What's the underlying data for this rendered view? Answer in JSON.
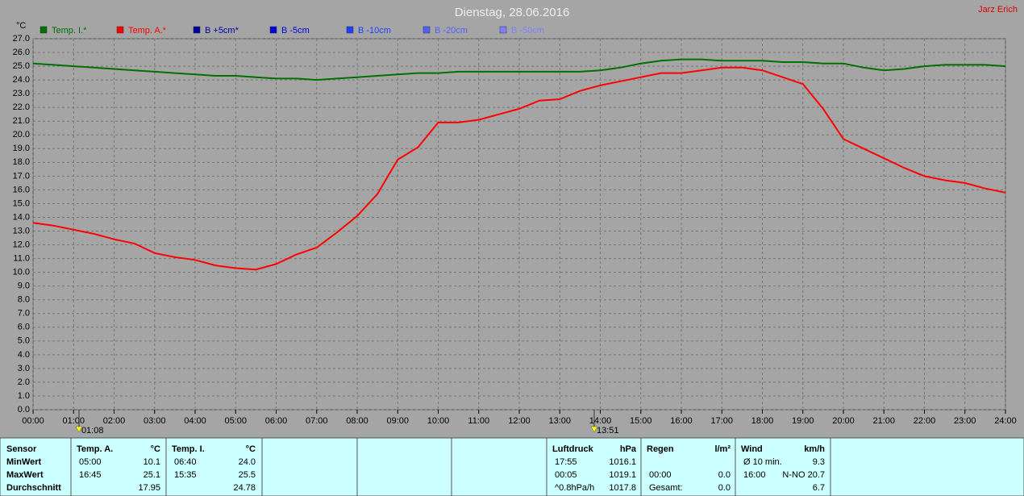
{
  "chart_data": {
    "type": "line",
    "title": "Dienstag, 28.06.2016",
    "author": "Jarz Erich",
    "y_label": "°C",
    "x": [
      0,
      0.5,
      1,
      1.5,
      2,
      2.5,
      3,
      3.5,
      4,
      4.5,
      5,
      5.5,
      6,
      6.5,
      7,
      7.5,
      8,
      8.5,
      9,
      9.5,
      10,
      10.5,
      11,
      11.5,
      12,
      12.5,
      13,
      13.5,
      14,
      14.5,
      15,
      15.5,
      16,
      16.5,
      17,
      17.5,
      18,
      18.5,
      19,
      19.5,
      20,
      20.5,
      21,
      21.5,
      22,
      22.5,
      23,
      23.5,
      24
    ],
    "series": [
      {
        "name": "Temp. I.*",
        "color": "#007000",
        "values": [
          25.2,
          25.1,
          25.0,
          24.9,
          24.8,
          24.7,
          24.6,
          24.5,
          24.4,
          24.3,
          24.3,
          24.2,
          24.1,
          24.1,
          24.0,
          24.1,
          24.2,
          24.3,
          24.4,
          24.5,
          24.5,
          24.6,
          24.6,
          24.6,
          24.6,
          24.6,
          24.6,
          24.6,
          24.7,
          24.9,
          25.2,
          25.4,
          25.5,
          25.5,
          25.4,
          25.4,
          25.4,
          25.3,
          25.3,
          25.2,
          25.2,
          24.9,
          24.7,
          24.8,
          25.0,
          25.1,
          25.1,
          25.1,
          25.0
        ]
      },
      {
        "name": "Temp. A.*",
        "color": "#ff0000",
        "values": [
          13.6,
          13.4,
          13.1,
          12.8,
          12.4,
          12.1,
          11.4,
          11.1,
          10.9,
          10.5,
          10.3,
          10.2,
          10.6,
          11.3,
          11.8,
          12.9,
          14.1,
          15.7,
          18.2,
          19.1,
          20.9,
          20.9,
          21.1,
          21.5,
          21.9,
          22.5,
          22.6,
          23.2,
          23.6,
          23.9,
          24.2,
          24.5,
          24.5,
          24.7,
          24.9,
          24.9,
          24.7,
          24.2,
          23.7,
          21.9,
          19.7,
          19.0,
          18.3,
          17.6,
          17.0,
          16.7,
          16.5,
          16.1,
          15.8
        ]
      }
    ],
    "legend_only": [
      {
        "name": "B +5cm*",
        "color": "#0000a0"
      },
      {
        "name": "B -5cm",
        "color": "#0000e0"
      },
      {
        "name": "B -10cm",
        "color": "#2040ff"
      },
      {
        "name": "B -20cm",
        "color": "#5060ff"
      },
      {
        "name": "B -50cm",
        "color": "#8080ff"
      }
    ],
    "markers": [
      {
        "x": 1.1333,
        "label": "01:08"
      },
      {
        "x": 13.85,
        "label": "13:51"
      }
    ],
    "xlim": [
      0,
      24
    ],
    "xticks": [
      {
        "value": 0,
        "label": "00:00"
      },
      {
        "value": 1,
        "label": "01:00"
      },
      {
        "value": 2,
        "label": "02:00"
      },
      {
        "value": 3,
        "label": "03:00"
      },
      {
        "value": 4,
        "label": "04:00"
      },
      {
        "value": 5,
        "label": "05:00"
      },
      {
        "value": 6,
        "label": "06:00"
      },
      {
        "value": 7,
        "label": "07:00"
      },
      {
        "value": 8,
        "label": "08:00"
      },
      {
        "value": 9,
        "label": "09:00"
      },
      {
        "value": 10,
        "label": "10:00"
      },
      {
        "value": 11,
        "label": "11:00"
      },
      {
        "value": 12,
        "label": "12:00"
      },
      {
        "value": 13,
        "label": "13:00"
      },
      {
        "value": 14,
        "label": "14:00"
      },
      {
        "value": 15,
        "label": "15:00"
      },
      {
        "value": 16,
        "label": "16:00"
      },
      {
        "value": 17,
        "label": "17:00"
      },
      {
        "value": 18,
        "label": "18:00"
      },
      {
        "value": 19,
        "label": "19:00"
      },
      {
        "value": 20,
        "label": "20:00"
      },
      {
        "value": 21,
        "label": "21:00"
      },
      {
        "value": 22,
        "label": "22:00"
      },
      {
        "value": 23,
        "label": "23:00"
      },
      {
        "value": 24,
        "label": "24:00"
      }
    ],
    "ylim": [
      0,
      27
    ],
    "yticks": [
      {
        "value": 0,
        "label": "0.0"
      },
      {
        "value": 1,
        "label": "1.0"
      },
      {
        "value": 2,
        "label": "2.0"
      },
      {
        "value": 3,
        "label": "3.0"
      },
      {
        "value": 4,
        "label": "4.0"
      },
      {
        "value": 5,
        "label": "5.0"
      },
      {
        "value": 6,
        "label": "6.0"
      },
      {
        "value": 7,
        "label": "7.0"
      },
      {
        "value": 8,
        "label": "8.0"
      },
      {
        "value": 9,
        "label": "9.0"
      },
      {
        "value": 10,
        "label": "10.0"
      },
      {
        "value": 11,
        "label": "11.0"
      },
      {
        "value": 12,
        "label": "12.0"
      },
      {
        "value": 13,
        "label": "13.0"
      },
      {
        "value": 14,
        "label": "14.0"
      },
      {
        "value": 15,
        "label": "15.0"
      },
      {
        "value": 16,
        "label": "16.0"
      },
      {
        "value": 17,
        "label": "17.0"
      },
      {
        "value": 18,
        "label": "18.0"
      },
      {
        "value": 19,
        "label": "19.0"
      },
      {
        "value": 20,
        "label": "20.0"
      },
      {
        "value": 21,
        "label": "21.0"
      },
      {
        "value": 22,
        "label": "22.0"
      },
      {
        "value": 23,
        "label": "23.0"
      },
      {
        "value": 24,
        "label": "24.0"
      },
      {
        "value": 25,
        "label": "25.0"
      },
      {
        "value": 26,
        "label": "26.0"
      },
      {
        "value": 27,
        "label": "27.0"
      }
    ],
    "grid": true
  },
  "stats": {
    "row_labels": [
      "Sensor",
      "MinWert",
      "MaxWert",
      "Durchschnitt"
    ],
    "blocks": [
      {
        "header": [
          "Temp. A.",
          "°C"
        ],
        "rows": [
          [
            "05:00",
            "10.1"
          ],
          [
            "16:45",
            "25.1"
          ],
          [
            null,
            "17.95"
          ]
        ]
      },
      {
        "header": [
          "Temp. I.",
          "°C"
        ],
        "rows": [
          [
            "06:40",
            "24.0"
          ],
          [
            "15:35",
            "25.5"
          ],
          [
            null,
            "24.78"
          ]
        ]
      },
      {
        "header": [
          "Luftdruck",
          "hPa"
        ],
        "rows": [
          [
            "17:55",
            "1016.1"
          ],
          [
            "00:05",
            "1019.1"
          ],
          [
            "^0.8hPa/h",
            "1017.8"
          ]
        ]
      },
      {
        "header": [
          "Regen",
          "l/m²"
        ],
        "rows": [
          [
            null,
            null
          ],
          [
            "00:00",
            "0.0"
          ],
          [
            "Gesamt:",
            "0.0"
          ]
        ]
      },
      {
        "header": [
          "Wind",
          "km/h"
        ],
        "rows": [
          [
            "Ø 10 min.",
            "9.3"
          ],
          [
            "16:00",
            "N-NO 20.7"
          ],
          [
            null,
            "6.7"
          ]
        ]
      }
    ]
  }
}
